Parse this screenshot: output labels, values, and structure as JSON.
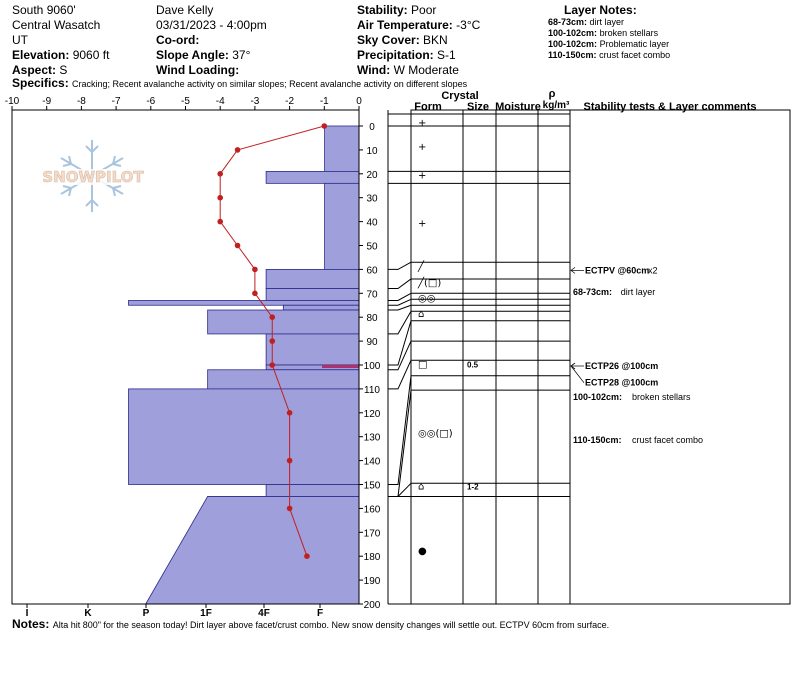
{
  "header": {
    "location": "South 9060'",
    "range": "Central Wasatch",
    "state": "UT",
    "elevation_label": "Elevation:",
    "elevation": "9060 ft",
    "aspect_label": "Aspect:",
    "aspect": "S",
    "observer": "Dave Kelly",
    "datetime": "03/31/2023 - 4:00pm",
    "coord_label": "Co-ord:",
    "coord": "",
    "slope_label": "Slope Angle:",
    "slope": "37°",
    "wind_loading_label": "Wind Loading:",
    "wind_loading": "",
    "stability_label": "Stability:",
    "stability": "Poor",
    "air_temp_label": "Air Temperature:",
    "air_temp": "-3°C",
    "sky_label": "Sky Cover:",
    "sky": "BKN",
    "precip_label": "Precipitation:",
    "precip": "S-1",
    "wind_label": "Wind:",
    "wind": "W Moderate"
  },
  "layer_notes": {
    "title": "Layer Notes:",
    "items": [
      {
        "range": "68-73cm:",
        "text": "dirt layer"
      },
      {
        "range": "100-102cm:",
        "text": "broken stellars"
      },
      {
        "range": "100-102cm:",
        "text": "Problematic layer"
      },
      {
        "range": "110-150cm:",
        "text": "crust facet combo"
      }
    ]
  },
  "specifics": {
    "label": "Specifics:",
    "text": "Cracking; Recent avalanche activity on similar slopes; Recent avalanche activity on different slopes"
  },
  "notes": {
    "label": "Notes:",
    "text": "Alta hit 800\" for the season today! Dirt layer above facet/crust combo.  New snow density changes will settle out. ECTPV 60cm from surface."
  },
  "logo": {
    "text": "SNOWPILOT"
  },
  "columns": {
    "crystal": "Crystal",
    "form": "Form",
    "size": "Size",
    "moisture": "Moisture",
    "rho": "ρ",
    "density_unit": "kg/m³",
    "comments": "Stability tests & Layer comments"
  },
  "chart_data": {
    "type": "snow-profile",
    "temperature_axis": {
      "ticks": [
        -10,
        -9,
        -8,
        -7,
        -6,
        -5,
        -4,
        -3,
        -2,
        -1,
        0
      ],
      "range": [
        -10,
        0
      ]
    },
    "hardness_axis": {
      "ticks": [
        "I",
        "K",
        "P",
        "1F",
        "4F",
        "F"
      ]
    },
    "depth_axis": {
      "ticks": [
        0,
        10,
        20,
        30,
        40,
        50,
        60,
        70,
        80,
        90,
        100,
        110,
        120,
        130,
        140,
        150,
        160,
        170,
        180,
        190,
        200
      ],
      "range": [
        0,
        200
      ]
    },
    "temperature_profile": [
      {
        "depth": 0,
        "temp": -1.0
      },
      {
        "depth": 10,
        "temp": -3.5
      },
      {
        "depth": 20,
        "temp": -4.0
      },
      {
        "depth": 30,
        "temp": -4.0
      },
      {
        "depth": 40,
        "temp": -4.0
      },
      {
        "depth": 50,
        "temp": -3.5
      },
      {
        "depth": 60,
        "temp": -3.0
      },
      {
        "depth": 70,
        "temp": -3.0
      },
      {
        "depth": 80,
        "temp": -2.5
      },
      {
        "depth": 90,
        "temp": -2.5
      },
      {
        "depth": 100,
        "temp": -2.5
      },
      {
        "depth": 120,
        "temp": -2.0
      },
      {
        "depth": 140,
        "temp": -2.0
      },
      {
        "depth": 160,
        "temp": -2.0
      },
      {
        "depth": 180,
        "temp": -1.5
      }
    ],
    "hardness_layers": [
      {
        "top": 0,
        "bottom": 19,
        "hardness": 1.0
      },
      {
        "top": 19,
        "bottom": 24,
        "hardness": 2.7
      },
      {
        "top": 24,
        "bottom": 60,
        "hardness": 1.0
      },
      {
        "top": 60,
        "bottom": 68,
        "hardness": 2.7
      },
      {
        "top": 68,
        "bottom": 73,
        "hardness": 2.7
      },
      {
        "top": 73,
        "bottom": 75,
        "hardness": 6.7
      },
      {
        "top": 75,
        "bottom": 77,
        "hardness": 2.2
      },
      {
        "top": 77,
        "bottom": 87,
        "hardness": 4.4
      },
      {
        "top": 87,
        "bottom": 100,
        "hardness": 2.7
      },
      {
        "top": 100,
        "bottom": 102,
        "hardness": 2.7
      },
      {
        "top": 102,
        "bottom": 110,
        "hardness": 4.4
      },
      {
        "top": 110,
        "bottom": 150,
        "hardness": 6.7
      },
      {
        "top": 150,
        "bottom": 155,
        "hardness": 2.7
      },
      {
        "top": 155,
        "bottom": 200,
        "hardness": 4.4,
        "bottom_hardness": 6.2
      }
    ],
    "stratigraphy": [
      {
        "depth": 0,
        "form": "+",
        "size": ""
      },
      {
        "depth": 10,
        "form": "+",
        "size": ""
      },
      {
        "depth": 22,
        "form": "+",
        "size": ""
      },
      {
        "depth": 42,
        "form": "+",
        "size": ""
      },
      {
        "depth": 60,
        "form": "╱",
        "size": ""
      },
      {
        "depth": 67,
        "form": "╱(□)",
        "size": ""
      },
      {
        "depth": 73.5,
        "form": "◎◎",
        "size": ""
      },
      {
        "depth": 80,
        "form": "⌂",
        "size": ""
      },
      {
        "depth": 101,
        "form": "□",
        "size": "0.5"
      },
      {
        "depth": 130,
        "form": "◎◎(□)",
        "size": ""
      },
      {
        "depth": 152,
        "form": "⌂",
        "size": "1-2"
      },
      {
        "depth": 179,
        "form": "●",
        "size": ""
      }
    ],
    "layer_boundaries": [
      0,
      19,
      24,
      57,
      64,
      70,
      72.5,
      75,
      77.5,
      81.5,
      90,
      98,
      104.5,
      110.5,
      149.5,
      155
    ],
    "stability_tests": [
      {
        "depth": 60,
        "label": "ECTPV @60cm",
        "extra": "x2"
      },
      {
        "depth": 100,
        "label": "ECTP26 @100cm",
        "extra": ""
      },
      {
        "depth": 107,
        "label": "ECTP28 @100cm",
        "extra": ""
      }
    ],
    "layer_comments": [
      {
        "depth": 69,
        "range": "68-73cm:",
        "text": "dirt layer"
      },
      {
        "depth": 113,
        "range": "100-102cm:",
        "text": "broken stellars"
      },
      {
        "depth": 131,
        "range": "110-150cm:",
        "text": "crust facet combo"
      }
    ]
  }
}
